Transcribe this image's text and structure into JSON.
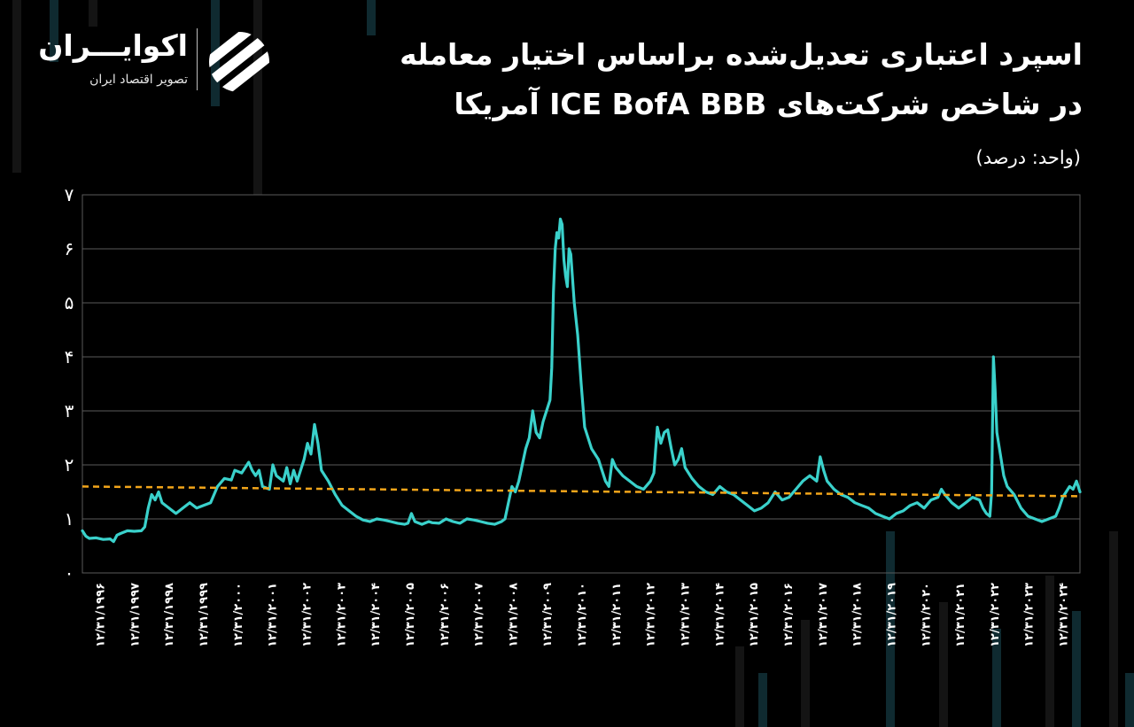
{
  "title": {
    "line1": "اسپرد اعتباری تعدیل‌شده براساس اختیار معامله",
    "line2": "در شاخص شرکت‌های ICE BofA BBB آمریکا"
  },
  "unit_label": "(واحد: درصد)",
  "logo": {
    "name": "اکوایـــران",
    "tagline": "تصویر اقتصاد ایران",
    "icon": "swirl-logo-icon"
  },
  "colors": {
    "background": "#000000",
    "series": "#3ad1cb",
    "trend": "#f2a51a",
    "grid": "#5a5a5a"
  },
  "chart_data": {
    "type": "line",
    "title": "اسپرد اعتباری تعدیل‌شده براساس اختیار معامله در شاخص شرکت‌های ICE BofA BBB آمریکا",
    "ylabel": "(واحد: درصد)",
    "xlabel": "",
    "ylim": [
      0,
      7
    ],
    "yticks": [
      "۰",
      "۱",
      "۲",
      "۳",
      "۴",
      "۵",
      "۶",
      "۷"
    ],
    "x_tick_labels": [
      "۱۲/۳۱/۱۹۹۶",
      "۱۲/۳۱/۱۹۹۷",
      "۱۲/۳۱/۱۹۹۸",
      "۱۲/۳۱/۱۹۹۹",
      "۱۲/۳۱/۲۰۰۰",
      "۱۲/۳۱/۲۰۰۱",
      "۱۲/۳۱/۲۰۰۲",
      "۱۲/۳۱/۲۰۰۳",
      "۱۲/۳۱/۲۰۰۴",
      "۱۲/۳۱/۲۰۰۵",
      "۱۲/۳۱/۲۰۰۶",
      "۱۲/۳۱/۲۰۰۷",
      "۱۲/۳۱/۲۰۰۸",
      "۱۲/۳۱/۲۰۰۹",
      "۱۲/۳۱/۲۰۱۰",
      "۱۲/۳۱/۲۰۱۱",
      "۱۲/۳۱/۲۰۱۲",
      "۱۲/۳۱/۲۰۱۳",
      "۱۲/۳۱/۲۰۱۴",
      "۱۲/۳۱/۲۰۱۵",
      "۱۲/۳۱/۲۰۱۶",
      "۱۲/۳۱/۲۰۱۷",
      "۱۲/۳۱/۲۰۱۸",
      "۱۲/۳۱/۲۰۱۹",
      "۱۲/۳۱/۲۰۲۰",
      "۱۲/۳۱/۲۰۲۱",
      "۱۲/۳۱/۲۰۲۲",
      "۱۲/۳۱/۲۰۲۳",
      "۱۲/۳۱/۲۰۲۴"
    ],
    "xlim": [
      1996.9,
      2025.7
    ],
    "grid": true,
    "series": [
      {
        "points": [
          [
            1996.9,
            0.78
          ],
          [
            1997.0,
            0.68
          ],
          [
            1997.1,
            0.64
          ],
          [
            1997.3,
            0.65
          ],
          [
            1997.5,
            0.62
          ],
          [
            1997.7,
            0.63
          ],
          [
            1997.8,
            0.58
          ],
          [
            1997.9,
            0.7
          ],
          [
            1998.0,
            0.73
          ],
          [
            1998.2,
            0.78
          ],
          [
            1998.4,
            0.77
          ],
          [
            1998.6,
            0.78
          ],
          [
            1998.7,
            0.85
          ],
          [
            1998.8,
            1.2
          ],
          [
            1998.9,
            1.45
          ],
          [
            1999.0,
            1.35
          ],
          [
            1999.1,
            1.5
          ],
          [
            1999.2,
            1.3
          ],
          [
            1999.4,
            1.2
          ],
          [
            1999.6,
            1.1
          ],
          [
            1999.8,
            1.2
          ],
          [
            2000.0,
            1.3
          ],
          [
            2000.2,
            1.2
          ],
          [
            2000.4,
            1.25
          ],
          [
            2000.6,
            1.3
          ],
          [
            2000.8,
            1.6
          ],
          [
            2001.0,
            1.75
          ],
          [
            2001.2,
            1.72
          ],
          [
            2001.3,
            1.9
          ],
          [
            2001.5,
            1.85
          ],
          [
            2001.7,
            2.05
          ],
          [
            2001.8,
            1.9
          ],
          [
            2001.9,
            1.8
          ],
          [
            2002.0,
            1.9
          ],
          [
            2002.1,
            1.6
          ],
          [
            2002.3,
            1.55
          ],
          [
            2002.4,
            2.0
          ],
          [
            2002.5,
            1.8
          ],
          [
            2002.7,
            1.7
          ],
          [
            2002.8,
            1.95
          ],
          [
            2002.9,
            1.65
          ],
          [
            2003.0,
            1.9
          ],
          [
            2003.1,
            1.7
          ],
          [
            2003.3,
            2.1
          ],
          [
            2003.4,
            2.4
          ],
          [
            2003.5,
            2.2
          ],
          [
            2003.6,
            2.75
          ],
          [
            2003.7,
            2.4
          ],
          [
            2003.8,
            1.9
          ],
          [
            2004.0,
            1.7
          ],
          [
            2004.2,
            1.45
          ],
          [
            2004.4,
            1.25
          ],
          [
            2004.6,
            1.15
          ],
          [
            2004.8,
            1.05
          ],
          [
            2005.0,
            0.98
          ],
          [
            2005.2,
            0.95
          ],
          [
            2005.4,
            1.0
          ],
          [
            2005.6,
            0.98
          ],
          [
            2005.8,
            0.95
          ],
          [
            2006.0,
            0.92
          ],
          [
            2006.2,
            0.9
          ],
          [
            2006.3,
            0.92
          ],
          [
            2006.4,
            1.1
          ],
          [
            2006.5,
            0.95
          ],
          [
            2006.7,
            0.9
          ],
          [
            2006.9,
            0.95
          ],
          [
            2007.0,
            0.93
          ],
          [
            2007.2,
            0.92
          ],
          [
            2007.4,
            1.0
          ],
          [
            2007.6,
            0.95
          ],
          [
            2007.8,
            0.92
          ],
          [
            2008.0,
            1.0
          ],
          [
            2008.2,
            0.98
          ],
          [
            2008.4,
            0.95
          ],
          [
            2008.6,
            0.92
          ],
          [
            2008.8,
            0.9
          ],
          [
            2009.0,
            0.95
          ],
          [
            2009.1,
            1.0
          ],
          [
            2009.2,
            1.3
          ],
          [
            2009.3,
            1.6
          ],
          [
            2009.4,
            1.5
          ],
          [
            2009.5,
            1.7
          ],
          [
            2009.6,
            2.0
          ],
          [
            2009.7,
            2.3
          ],
          [
            2009.8,
            2.5
          ],
          [
            2009.9,
            3.0
          ],
          [
            2010.0,
            2.6
          ],
          [
            2010.1,
            2.5
          ],
          [
            2010.2,
            2.8
          ],
          [
            2010.3,
            3.0
          ],
          [
            2010.4,
            3.2
          ],
          [
            2010.45,
            3.8
          ],
          [
            2010.5,
            5.2
          ],
          [
            2010.55,
            6.0
          ],
          [
            2010.6,
            6.3
          ],
          [
            2010.65,
            6.2
          ],
          [
            2010.7,
            6.55
          ],
          [
            2010.75,
            6.45
          ],
          [
            2010.8,
            5.8
          ],
          [
            2010.85,
            5.5
          ],
          [
            2010.9,
            5.3
          ],
          [
            2010.95,
            6.0
          ],
          [
            2011.0,
            5.9
          ],
          [
            2011.1,
            5.0
          ],
          [
            2011.2,
            4.4
          ],
          [
            2011.3,
            3.5
          ],
          [
            2011.4,
            2.7
          ],
          [
            2011.6,
            2.3
          ],
          [
            2011.8,
            2.1
          ],
          [
            2012.0,
            1.7
          ],
          [
            2012.1,
            1.6
          ],
          [
            2012.2,
            2.1
          ],
          [
            2012.3,
            1.95
          ],
          [
            2012.5,
            1.8
          ],
          [
            2012.7,
            1.7
          ],
          [
            2012.9,
            1.6
          ],
          [
            2013.1,
            1.55
          ],
          [
            2013.3,
            1.7
          ],
          [
            2013.4,
            1.85
          ],
          [
            2013.5,
            2.7
          ],
          [
            2013.6,
            2.4
          ],
          [
            2013.7,
            2.6
          ],
          [
            2013.8,
            2.65
          ],
          [
            2013.9,
            2.3
          ],
          [
            2014.0,
            2.0
          ],
          [
            2014.1,
            2.1
          ],
          [
            2014.2,
            2.3
          ],
          [
            2014.3,
            1.95
          ],
          [
            2014.5,
            1.75
          ],
          [
            2014.7,
            1.6
          ],
          [
            2014.9,
            1.5
          ],
          [
            2015.1,
            1.45
          ],
          [
            2015.3,
            1.6
          ],
          [
            2015.5,
            1.5
          ],
          [
            2015.7,
            1.45
          ],
          [
            2015.9,
            1.35
          ],
          [
            2016.1,
            1.25
          ],
          [
            2016.3,
            1.15
          ],
          [
            2016.5,
            1.2
          ],
          [
            2016.7,
            1.3
          ],
          [
            2016.9,
            1.5
          ],
          [
            2017.1,
            1.35
          ],
          [
            2017.3,
            1.4
          ],
          [
            2017.5,
            1.55
          ],
          [
            2017.7,
            1.7
          ],
          [
            2017.9,
            1.8
          ],
          [
            2018.1,
            1.7
          ],
          [
            2018.2,
            2.15
          ],
          [
            2018.3,
            1.9
          ],
          [
            2018.4,
            1.7
          ],
          [
            2018.6,
            1.55
          ],
          [
            2018.8,
            1.45
          ],
          [
            2019.0,
            1.4
          ],
          [
            2019.2,
            1.3
          ],
          [
            2019.4,
            1.25
          ],
          [
            2019.6,
            1.2
          ],
          [
            2019.8,
            1.1
          ],
          [
            2020.0,
            1.05
          ],
          [
            2020.2,
            1.0
          ],
          [
            2020.4,
            1.1
          ],
          [
            2020.6,
            1.15
          ],
          [
            2020.8,
            1.25
          ],
          [
            2021.0,
            1.3
          ],
          [
            2021.2,
            1.2
          ],
          [
            2021.4,
            1.35
          ],
          [
            2021.6,
            1.4
          ],
          [
            2021.7,
            1.55
          ],
          [
            2021.8,
            1.45
          ],
          [
            2022.0,
            1.3
          ],
          [
            2022.2,
            1.2
          ],
          [
            2022.4,
            1.3
          ],
          [
            2022.6,
            1.4
          ],
          [
            2022.8,
            1.35
          ],
          [
            2022.9,
            1.2
          ],
          [
            2023.0,
            1.1
          ],
          [
            2023.1,
            1.05
          ],
          [
            2023.15,
            1.5
          ],
          [
            2023.2,
            4.0
          ],
          [
            2023.25,
            3.4
          ],
          [
            2023.3,
            2.6
          ],
          [
            2023.4,
            2.2
          ],
          [
            2023.5,
            1.8
          ],
          [
            2023.6,
            1.6
          ],
          [
            2023.8,
            1.45
          ],
          [
            2024.0,
            1.2
          ],
          [
            2024.2,
            1.05
          ],
          [
            2024.4,
            1.0
          ],
          [
            2024.6,
            0.95
          ],
          [
            2024.8,
            1.0
          ],
          [
            2025.0,
            1.05
          ],
          [
            2025.1,
            1.2
          ],
          [
            2025.2,
            1.4
          ],
          [
            2025.3,
            1.5
          ],
          [
            2025.4,
            1.6
          ],
          [
            2025.5,
            1.55
          ],
          [
            2025.6,
            1.7
          ],
          [
            2025.7,
            1.5
          ]
        ]
      }
    ],
    "trendline": {
      "style": "dashed",
      "from": [
        1996.9,
        1.6
      ],
      "to": [
        2025.7,
        1.42
      ]
    }
  }
}
